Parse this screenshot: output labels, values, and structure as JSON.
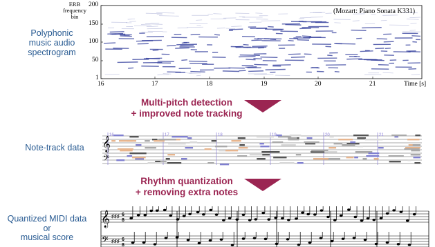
{
  "labels": {
    "spectrogram": [
      "Polyphonic",
      "music audio",
      "spectrogram"
    ],
    "note_track": "Note-track data",
    "midi": [
      "Quantized MIDI data",
      "or",
      "musical score"
    ]
  },
  "steps": {
    "step1": [
      "Multi-pitch detection",
      "+ improved note tracking"
    ],
    "step2": [
      "Rhythm quantization",
      "+ removing extra notes"
    ]
  },
  "spectrogram": {
    "ylabel": [
      "ERB",
      "frequency",
      "bin"
    ],
    "xlabel": "Time [s]",
    "annotation": "(Mozart: Piano Sonata K331)",
    "x_ticks": [
      "16",
      "17",
      "18",
      "19",
      "20",
      "21"
    ],
    "y_ticks": [
      "200",
      "150",
      "100",
      "50",
      "1"
    ]
  },
  "note_track": {
    "bar_markers": [
      "16",
      "17",
      "18",
      "19",
      "20",
      "21"
    ]
  },
  "colors": {
    "label_blue": "#2a5c93",
    "step_red": "#9b2552",
    "spectrogram_blue": "#2e3a9a"
  }
}
